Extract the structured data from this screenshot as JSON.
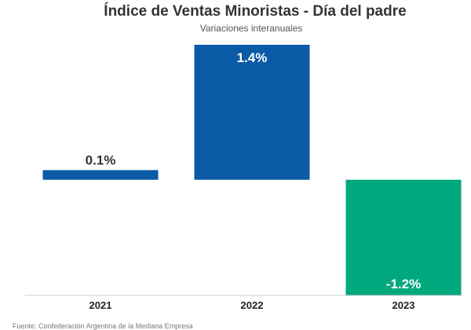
{
  "chart_data": {
    "type": "bar",
    "title": "Índice de Ventas Minoristas - Día del padre",
    "subtitle": "Variaciones interanuales",
    "categories": [
      "2021",
      "2022",
      "2023"
    ],
    "values": [
      0.1,
      1.4,
      -1.2
    ],
    "data_labels": [
      "0.1%",
      "1.4%",
      "-1.2%"
    ],
    "colors": [
      "#0a5aa5",
      "#0a5aa5",
      "#00a87e"
    ],
    "label_color_inside": "#ffffff",
    "label_color_outside": "#333333",
    "ylim": [
      -1.2,
      1.4
    ],
    "grid": false,
    "source": "Fuente: Confederación Argentina de la Mediana Empresa"
  }
}
